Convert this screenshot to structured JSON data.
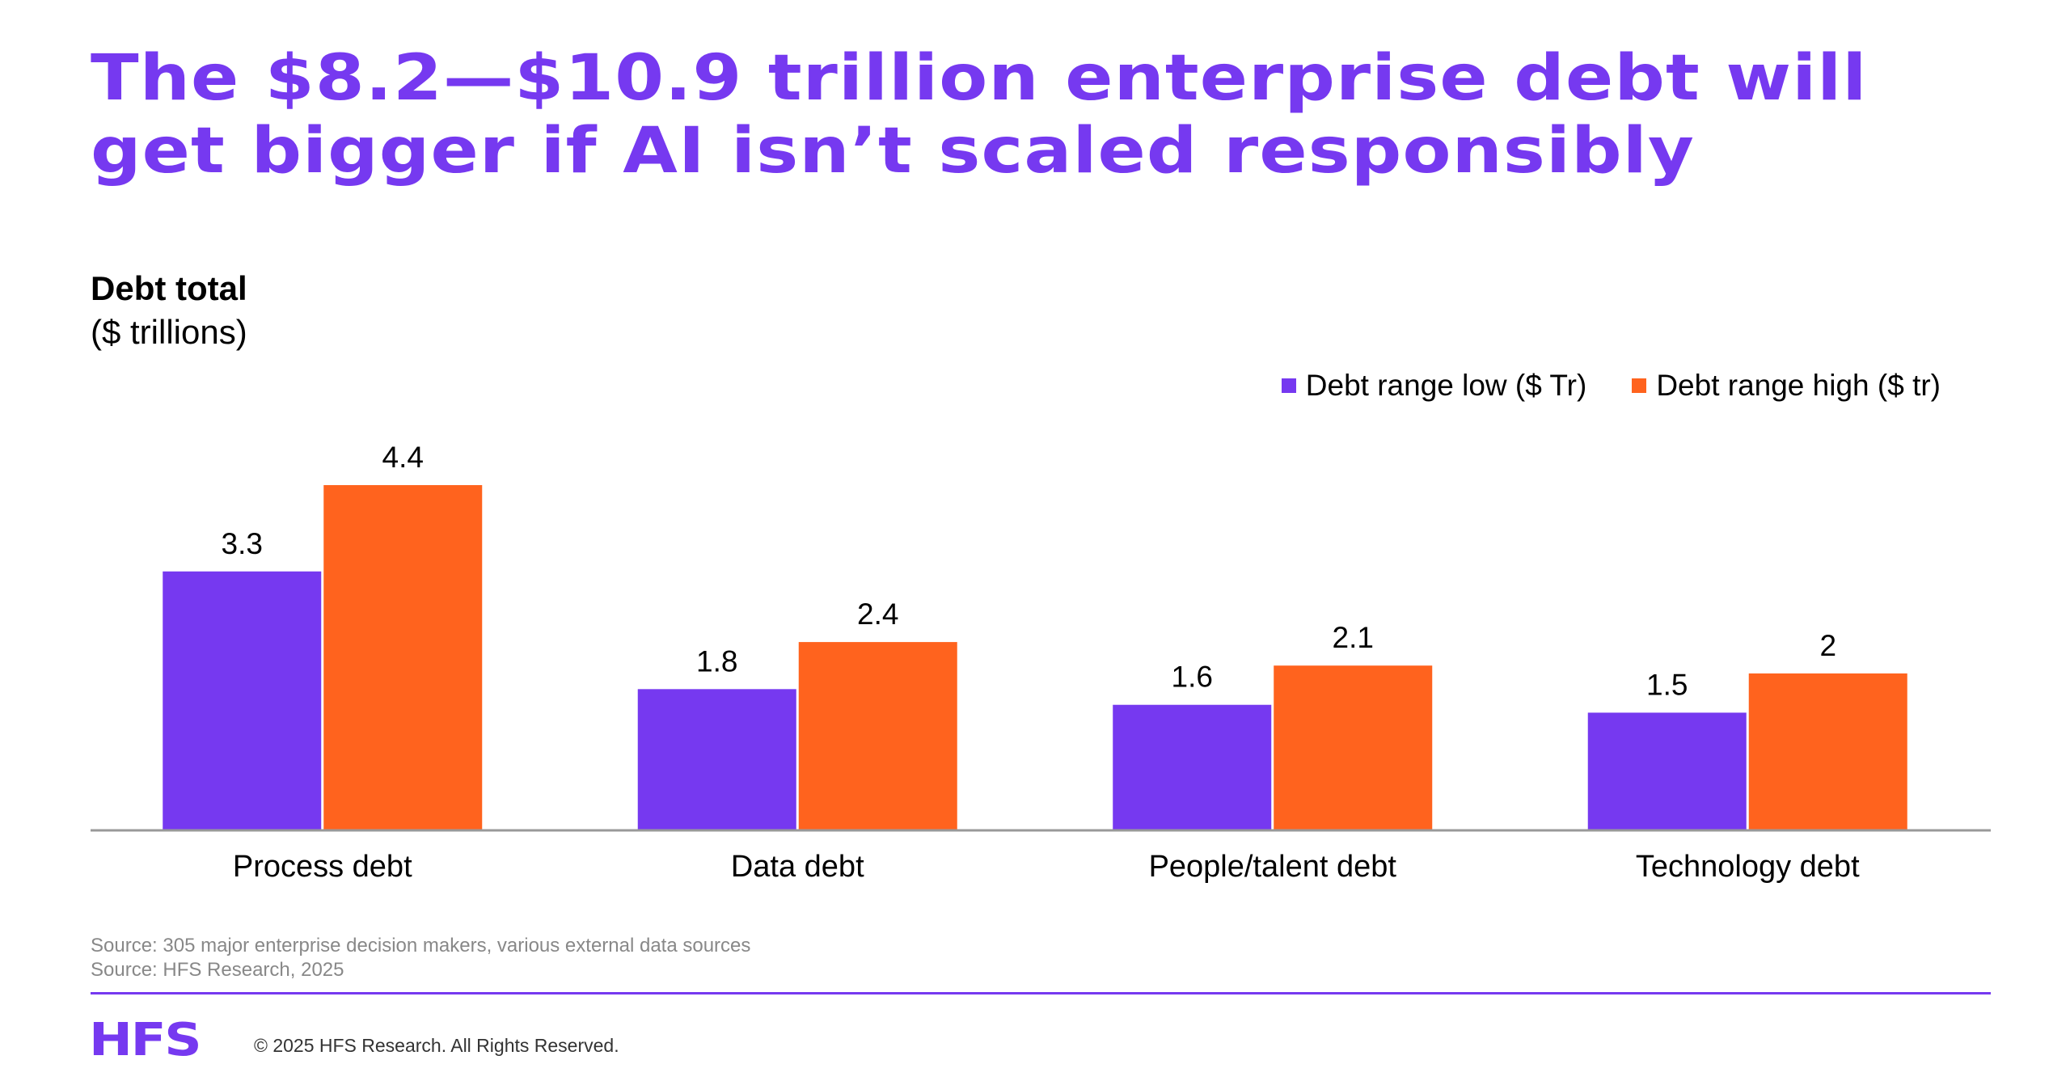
{
  "page": {
    "title_lines": [
      "The $8.2—$10.9 trillion enterprise debt will",
      "get bigger if AI isn’t scaled responsibly"
    ]
  },
  "colors": {
    "brand_purple": "#7639f0",
    "series_low": "#7639f0",
    "series_high": "#ff631e",
    "axis": "#999999",
    "source_text": "#888888"
  },
  "chart_data": {
    "type": "bar",
    "title": "Debt total",
    "subtitle": "($ trillions)",
    "categories": [
      "Process debt",
      "Data debt",
      "People/talent debt",
      "Technology debt"
    ],
    "series": [
      {
        "name": "Debt range low ($ Tr)",
        "values": [
          3.3,
          1.8,
          1.6,
          1.5
        ],
        "labels": [
          "3.3",
          "1.8",
          "1.6",
          "1.5"
        ]
      },
      {
        "name": "Debt range high ($ tr)",
        "values": [
          4.4,
          2.4,
          2.1,
          2
        ],
        "labels": [
          "4.4",
          "2.4",
          "2.1",
          "2"
        ]
      }
    ],
    "xlabel": "",
    "ylabel": "",
    "ylim": [
      0,
      4.4
    ],
    "grid": false,
    "legend": "top-right",
    "data_labels": true
  },
  "footer": {
    "sources": [
      "Source: 305 major enterprise decision makers, various external data sources",
      "Source: HFS Research, 2025"
    ],
    "logo_text": "HFS",
    "copyright": "© 2025 HFS Research. All Rights Reserved."
  }
}
